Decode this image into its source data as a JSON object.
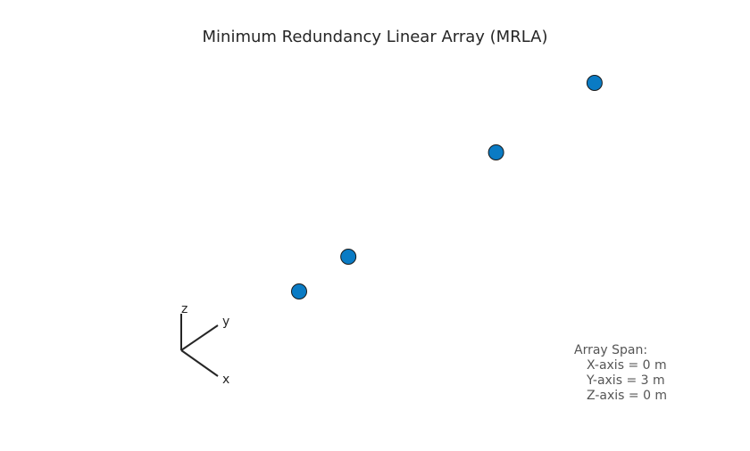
{
  "chart_data": {
    "type": "scatter3d",
    "title": "Minimum Redundancy Linear Array (MRLA)",
    "x": [
      0,
      0,
      0,
      0
    ],
    "y": [
      0,
      0.5,
      2,
      3
    ],
    "z": [
      0,
      0,
      0,
      0
    ],
    "color": "#0a7bc4",
    "axis_labels": {
      "x": "x",
      "y": "y",
      "z": "z"
    },
    "annotation": [
      "Array Span:",
      "X-axis = 0 m",
      "Y-axis = 3 m",
      "Z-axis = 0 m"
    ]
  }
}
